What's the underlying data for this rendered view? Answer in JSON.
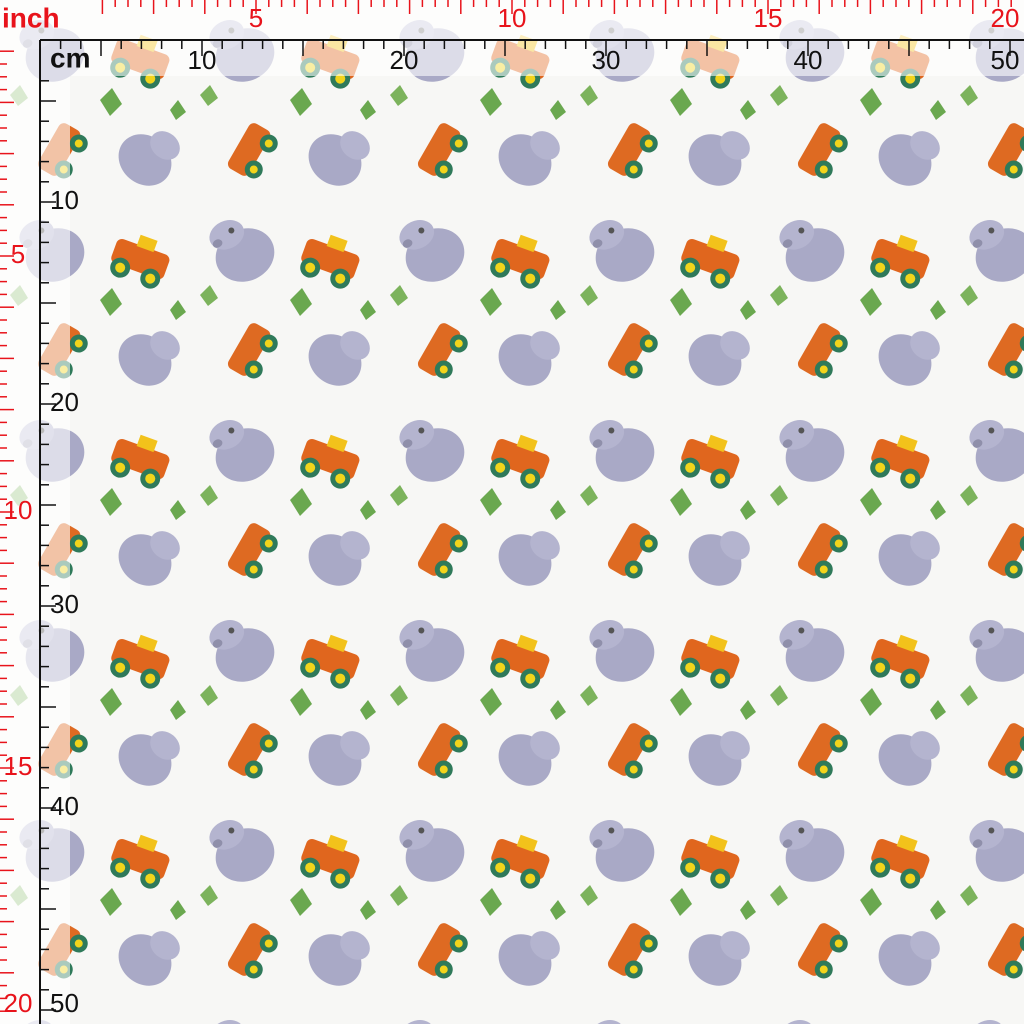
{
  "top_ruler": {
    "inch_label": "inch",
    "inch_numbers": [
      5,
      10,
      15,
      20
    ],
    "cm_label": "cm",
    "cm_numbers": [
      10,
      20,
      30,
      40,
      50
    ]
  },
  "left_ruler": {
    "inch_numbers": [
      5,
      10,
      15,
      20
    ],
    "cm_numbers": [
      10,
      20,
      30,
      40,
      50
    ]
  }
}
